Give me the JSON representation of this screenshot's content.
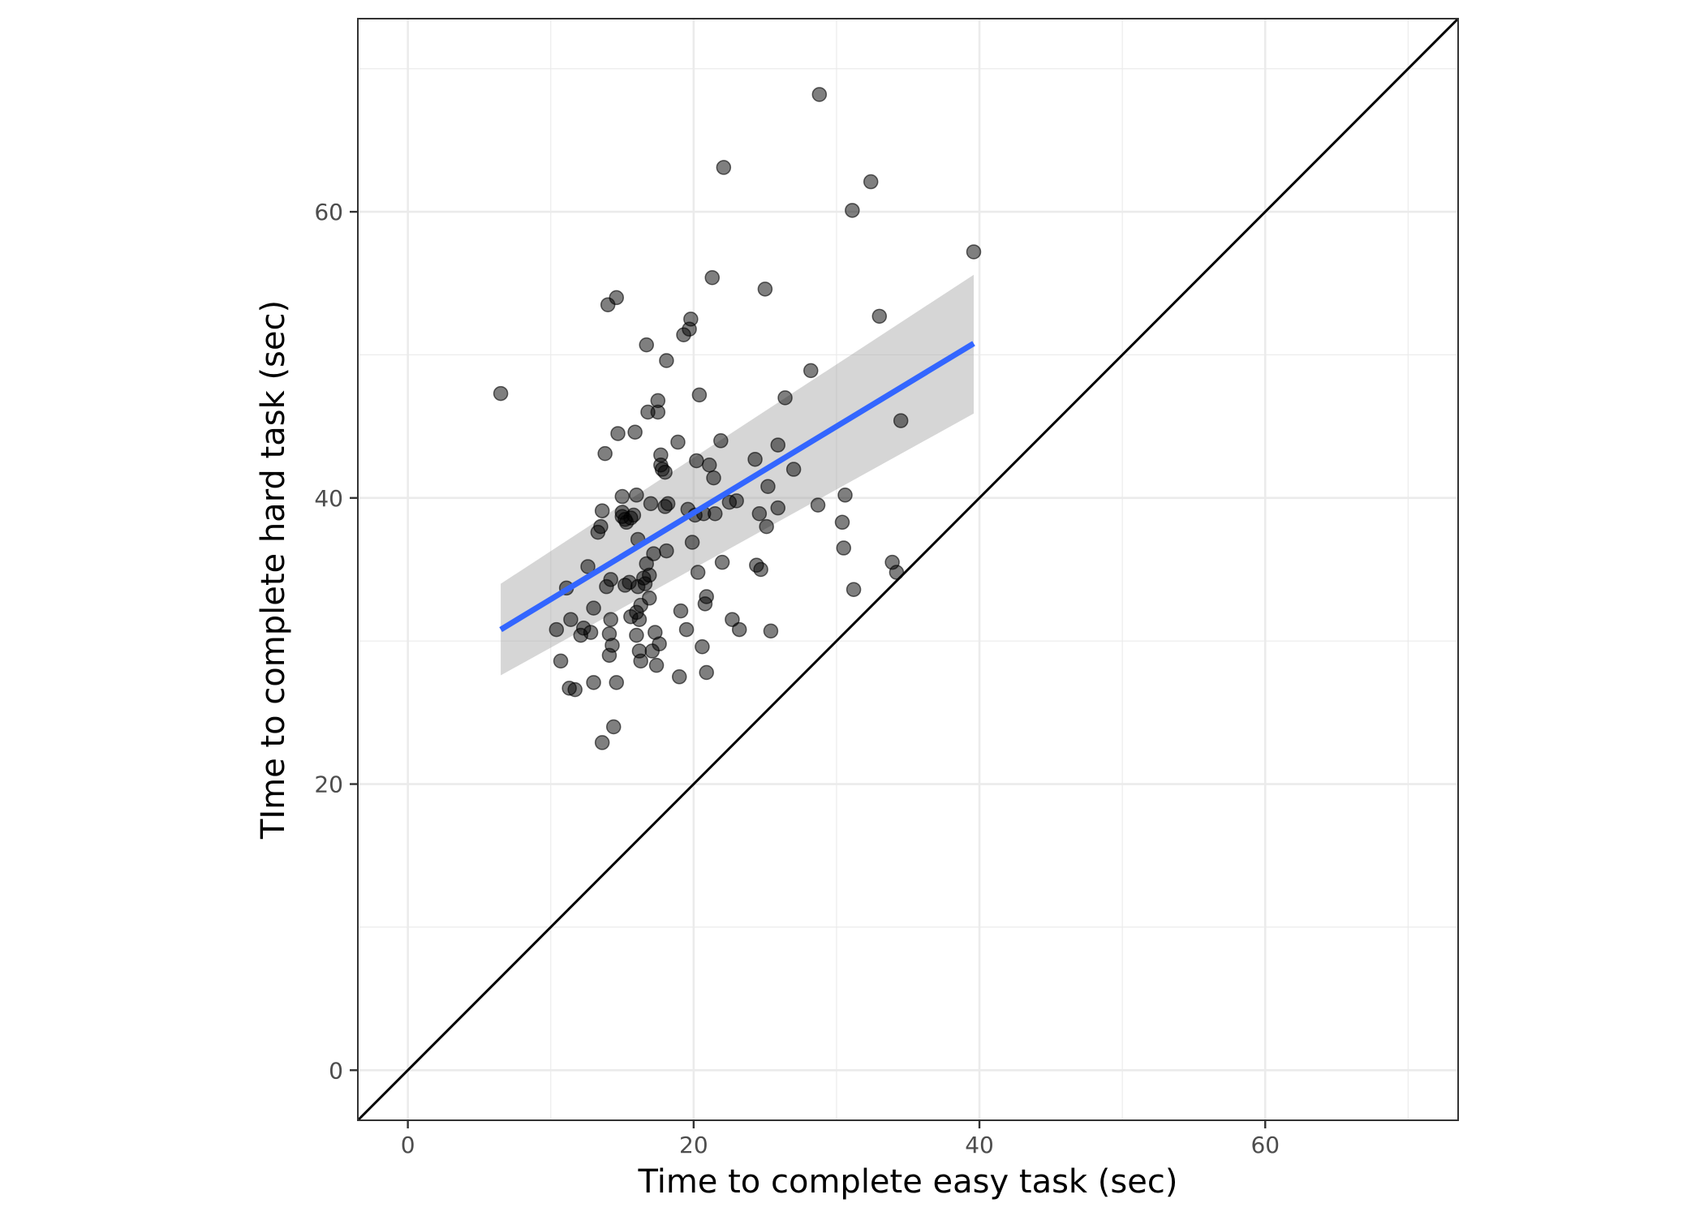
{
  "chart_data": {
    "type": "scatter",
    "title": "",
    "xlabel": "Time to complete easy task (sec)",
    "ylabel": "TIme to complete hard task (sec)",
    "xlim": [
      -3.5,
      73.5
    ],
    "ylim": [
      -3.5,
      73.5
    ],
    "x_ticks": [
      0,
      20,
      40,
      60
    ],
    "y_ticks": [
      0,
      20,
      40,
      60
    ],
    "x_tick_labels": [
      "0",
      "20",
      "40",
      "60"
    ],
    "y_tick_labels": [
      "0",
      "20",
      "40",
      "60"
    ],
    "grid": true,
    "legend": "none",
    "points": [
      [
        6.5,
        47.3
      ],
      [
        10.4,
        30.8
      ],
      [
        10.7,
        28.6
      ],
      [
        11.1,
        33.7
      ],
      [
        11.3,
        26.7
      ],
      [
        11.4,
        31.5
      ],
      [
        11.7,
        26.6
      ],
      [
        12.1,
        30.4
      ],
      [
        12.3,
        30.9
      ],
      [
        12.6,
        35.2
      ],
      [
        12.8,
        30.6
      ],
      [
        13.0,
        32.3
      ],
      [
        13.0,
        27.1
      ],
      [
        13.3,
        37.6
      ],
      [
        13.5,
        38.0
      ],
      [
        13.6,
        39.1
      ],
      [
        13.6,
        22.9
      ],
      [
        13.8,
        43.1
      ],
      [
        13.9,
        33.8
      ],
      [
        14.0,
        53.5
      ],
      [
        14.1,
        29.0
      ],
      [
        14.1,
        30.5
      ],
      [
        14.2,
        34.3
      ],
      [
        14.2,
        31.5
      ],
      [
        14.3,
        29.7
      ],
      [
        14.4,
        24.0
      ],
      [
        14.6,
        54.0
      ],
      [
        14.6,
        27.1
      ],
      [
        14.7,
        44.5
      ],
      [
        15.0,
        38.7
      ],
      [
        15.0,
        40.1
      ],
      [
        15.0,
        39.0
      ],
      [
        15.2,
        33.9
      ],
      [
        15.2,
        38.5
      ],
      [
        15.3,
        38.3
      ],
      [
        15.5,
        34.1
      ],
      [
        15.6,
        31.7
      ],
      [
        15.6,
        38.6
      ],
      [
        15.8,
        38.8
      ],
      [
        15.9,
        44.6
      ],
      [
        16.0,
        40.2
      ],
      [
        16.0,
        32.0
      ],
      [
        16.0,
        30.4
      ],
      [
        16.1,
        37.1
      ],
      [
        16.1,
        33.8
      ],
      [
        16.2,
        31.5
      ],
      [
        16.2,
        29.3
      ],
      [
        16.3,
        28.6
      ],
      [
        16.3,
        32.5
      ],
      [
        16.5,
        34.4
      ],
      [
        16.6,
        34.0
      ],
      [
        16.7,
        35.4
      ],
      [
        16.7,
        50.7
      ],
      [
        16.8,
        46.0
      ],
      [
        16.9,
        34.6
      ],
      [
        16.9,
        33.0
      ],
      [
        17.0,
        39.6
      ],
      [
        17.1,
        29.3
      ],
      [
        17.2,
        36.1
      ],
      [
        17.3,
        30.6
      ],
      [
        17.4,
        28.3
      ],
      [
        17.5,
        46.8
      ],
      [
        17.5,
        46.0
      ],
      [
        17.6,
        29.8
      ],
      [
        17.7,
        43.0
      ],
      [
        17.7,
        42.3
      ],
      [
        17.8,
        42.0
      ],
      [
        18.0,
        41.8
      ],
      [
        18.0,
        39.4
      ],
      [
        18.1,
        36.3
      ],
      [
        18.1,
        49.6
      ],
      [
        18.2,
        39.6
      ],
      [
        18.9,
        43.9
      ],
      [
        19.0,
        27.5
      ],
      [
        19.1,
        32.1
      ],
      [
        19.3,
        51.4
      ],
      [
        19.5,
        30.8
      ],
      [
        19.6,
        39.2
      ],
      [
        19.7,
        51.8
      ],
      [
        19.8,
        52.5
      ],
      [
        19.9,
        36.9
      ],
      [
        20.1,
        38.8
      ],
      [
        20.2,
        42.6
      ],
      [
        20.3,
        34.8
      ],
      [
        20.4,
        47.2
      ],
      [
        20.6,
        29.6
      ],
      [
        20.7,
        38.9
      ],
      [
        20.8,
        32.6
      ],
      [
        20.9,
        33.1
      ],
      [
        20.9,
        27.8
      ],
      [
        21.1,
        42.3
      ],
      [
        21.3,
        55.4
      ],
      [
        21.4,
        41.4
      ],
      [
        21.5,
        38.9
      ],
      [
        21.9,
        44.0
      ],
      [
        22.0,
        35.5
      ],
      [
        22.1,
        63.1
      ],
      [
        22.5,
        39.7
      ],
      [
        22.7,
        31.5
      ],
      [
        23.0,
        39.8
      ],
      [
        23.2,
        30.8
      ],
      [
        24.3,
        42.7
      ],
      [
        24.4,
        35.3
      ],
      [
        24.6,
        38.9
      ],
      [
        24.7,
        35.0
      ],
      [
        25.0,
        54.6
      ],
      [
        25.1,
        38.0
      ],
      [
        25.2,
        40.8
      ],
      [
        25.4,
        30.7
      ],
      [
        25.9,
        43.7
      ],
      [
        25.9,
        39.3
      ],
      [
        26.4,
        47.0
      ],
      [
        27.0,
        42.0
      ],
      [
        28.2,
        48.9
      ],
      [
        28.7,
        39.5
      ],
      [
        28.8,
        68.2
      ],
      [
        30.4,
        38.3
      ],
      [
        30.5,
        36.5
      ],
      [
        30.6,
        40.2
      ],
      [
        31.1,
        60.1
      ],
      [
        31.2,
        33.6
      ],
      [
        32.4,
        62.1
      ],
      [
        33.0,
        52.7
      ],
      [
        33.9,
        35.5
      ],
      [
        34.2,
        34.8
      ],
      [
        34.5,
        45.4
      ],
      [
        39.6,
        57.2
      ]
    ],
    "trend_line": {
      "x": [
        6.5,
        39.6
      ],
      "y": [
        30.8,
        50.8
      ]
    },
    "confidence_band": {
      "x": [
        6.5,
        39.6
      ],
      "lower": [
        27.6,
        45.9
      ],
      "upper": [
        34.0,
        55.6
      ]
    },
    "reference_line": {
      "x": [
        -3.5,
        73.5
      ],
      "y": [
        -3.5,
        73.5
      ]
    },
    "colors": {
      "point": "#000000",
      "trend": "#3366ff",
      "band": "#999999",
      "grid": "#ebebeb",
      "reference": "#000000"
    }
  }
}
